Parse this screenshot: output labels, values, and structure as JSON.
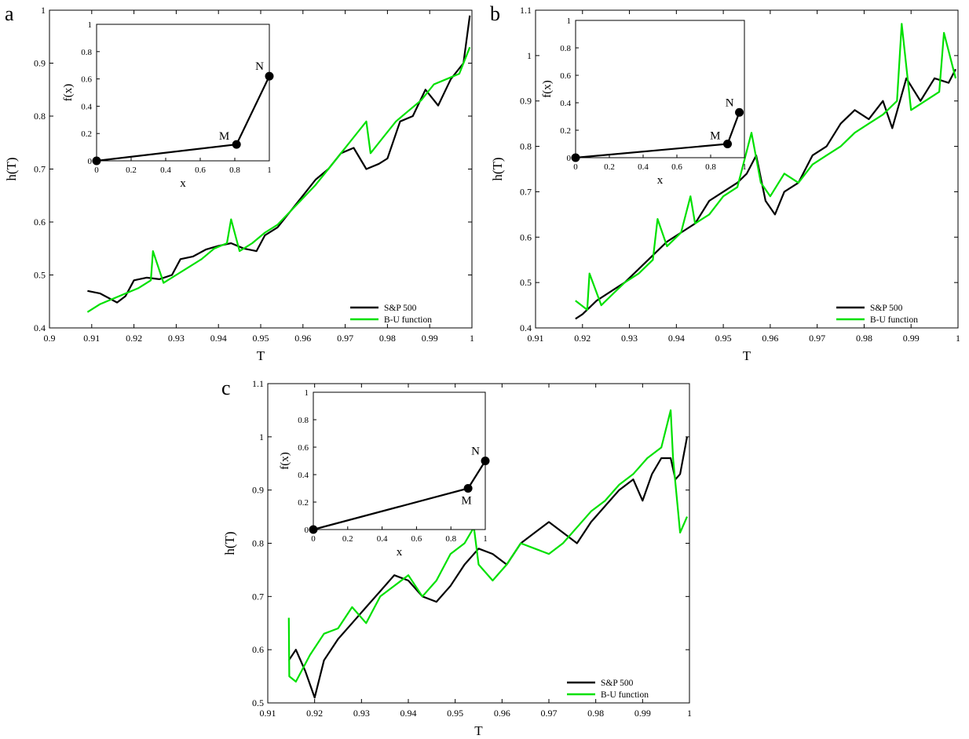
{
  "colors": {
    "sp500": "#000000",
    "bu": "#00e000",
    "axis": "#000000",
    "background": "#ffffff"
  },
  "chart_data": [
    {
      "panel": "a",
      "type": "line",
      "xlabel": "T",
      "ylabel": "h(T)",
      "xlim": [
        0.9,
        1.0
      ],
      "ylim": [
        0.4,
        1.0
      ],
      "xticks": [
        "0.9",
        "0.91",
        "0.92",
        "0.93",
        "0.94",
        "0.95",
        "0.96",
        "0.97",
        "0.98",
        "0.99",
        "1"
      ],
      "yticks": [
        "0.4",
        "0.5",
        "0.6",
        "0.7",
        "0.8",
        "0.9",
        "1"
      ],
      "legend": {
        "position": "bottom-right"
      },
      "series": [
        {
          "name": "S&P 500",
          "color": "#000000",
          "x": [
            0.909,
            0.912,
            0.916,
            0.918,
            0.92,
            0.923,
            0.926,
            0.929,
            0.931,
            0.934,
            0.937,
            0.94,
            0.943,
            0.946,
            0.949,
            0.951,
            0.954,
            0.957,
            0.96,
            0.963,
            0.966,
            0.969,
            0.972,
            0.975,
            0.978,
            0.98,
            0.983,
            0.986,
            0.989,
            0.992,
            0.995,
            0.998,
            0.9995
          ],
          "y": [
            0.47,
            0.465,
            0.448,
            0.46,
            0.49,
            0.495,
            0.492,
            0.5,
            0.53,
            0.535,
            0.548,
            0.555,
            0.56,
            0.55,
            0.545,
            0.575,
            0.59,
            0.62,
            0.65,
            0.68,
            0.7,
            0.73,
            0.74,
            0.7,
            0.71,
            0.72,
            0.79,
            0.8,
            0.85,
            0.82,
            0.87,
            0.9,
            0.99
          ]
        },
        {
          "name": "B-U function",
          "color": "#00e000",
          "x": [
            0.909,
            0.912,
            0.915,
            0.918,
            0.921,
            0.924,
            0.9245,
            0.927,
            0.93,
            0.933,
            0.936,
            0.939,
            0.942,
            0.943,
            0.945,
            0.948,
            0.951,
            0.954,
            0.957,
            0.96,
            0.963,
            0.966,
            0.969,
            0.972,
            0.975,
            0.976,
            0.979,
            0.982,
            0.985,
            0.988,
            0.991,
            0.994,
            0.997,
            0.9995
          ],
          "y": [
            0.43,
            0.445,
            0.455,
            0.465,
            0.475,
            0.49,
            0.545,
            0.485,
            0.5,
            0.515,
            0.53,
            0.55,
            0.56,
            0.605,
            0.545,
            0.56,
            0.58,
            0.595,
            0.62,
            0.645,
            0.67,
            0.7,
            0.73,
            0.76,
            0.79,
            0.73,
            0.76,
            0.79,
            0.81,
            0.83,
            0.86,
            0.87,
            0.88,
            0.93
          ]
        }
      ],
      "inset": {
        "xlabel": "x",
        "ylabel": "f(x)",
        "xlim": [
          0,
          1
        ],
        "ylim": [
          0,
          1
        ],
        "xticks": [
          "0",
          "0.2",
          "0.4",
          "0.6",
          "0.8",
          "1"
        ],
        "yticks": [
          "0",
          "0.2",
          "0.4",
          "0.6",
          "0.8",
          "1"
        ],
        "points": [
          {
            "label": "",
            "x": 0,
            "y": 0
          },
          {
            "label": "M",
            "x": 0.81,
            "y": 0.12
          },
          {
            "label": "N",
            "x": 1.0,
            "y": 0.62
          }
        ]
      }
    },
    {
      "panel": "b",
      "type": "line",
      "xlabel": "T",
      "ylabel": "h(T)",
      "xlim": [
        0.91,
        1.0
      ],
      "ylim": [
        0.4,
        1.1
      ],
      "xticks": [
        "0.91",
        "0.92",
        "0.93",
        "0.94",
        "0.95",
        "0.96",
        "0.97",
        "0.98",
        "0.99",
        "1"
      ],
      "yticks": [
        "0.4",
        "0.5",
        "0.6",
        "0.7",
        "0.8",
        "0.9",
        "1",
        "1.1"
      ],
      "legend": {
        "position": "bottom-right"
      },
      "series": [
        {
          "name": "S&P 500",
          "color": "#000000",
          "x": [
            0.9185,
            0.92,
            0.923,
            0.926,
            0.929,
            0.932,
            0.935,
            0.938,
            0.941,
            0.944,
            0.947,
            0.95,
            0.953,
            0.955,
            0.957,
            0.959,
            0.961,
            0.963,
            0.966,
            0.969,
            0.972,
            0.975,
            0.978,
            0.981,
            0.984,
            0.986,
            0.989,
            0.992,
            0.995,
            0.998,
            0.9995
          ],
          "y": [
            0.42,
            0.43,
            0.46,
            0.48,
            0.5,
            0.53,
            0.56,
            0.59,
            0.61,
            0.63,
            0.68,
            0.7,
            0.72,
            0.74,
            0.78,
            0.68,
            0.65,
            0.7,
            0.72,
            0.78,
            0.8,
            0.85,
            0.88,
            0.86,
            0.9,
            0.84,
            0.95,
            0.9,
            0.95,
            0.94,
            0.97
          ]
        },
        {
          "name": "B-U function",
          "color": "#00e000",
          "x": [
            0.9185,
            0.921,
            0.9215,
            0.924,
            0.926,
            0.929,
            0.932,
            0.935,
            0.936,
            0.938,
            0.941,
            0.943,
            0.944,
            0.947,
            0.95,
            0.953,
            0.956,
            0.958,
            0.96,
            0.963,
            0.966,
            0.969,
            0.972,
            0.975,
            0.978,
            0.981,
            0.984,
            0.987,
            0.988,
            0.99,
            0.993,
            0.996,
            0.997,
            0.9995
          ],
          "y": [
            0.46,
            0.44,
            0.52,
            0.45,
            0.47,
            0.5,
            0.52,
            0.55,
            0.64,
            0.58,
            0.61,
            0.69,
            0.63,
            0.65,
            0.69,
            0.71,
            0.83,
            0.72,
            0.69,
            0.74,
            0.72,
            0.76,
            0.78,
            0.8,
            0.83,
            0.85,
            0.87,
            0.9,
            1.07,
            0.88,
            0.9,
            0.92,
            1.05,
            0.95
          ]
        }
      ],
      "inset": {
        "xlabel": "x",
        "ylabel": "f(x)",
        "xlim": [
          0,
          1
        ],
        "ylim": [
          0,
          1
        ],
        "xticks": [
          "0",
          "0.2",
          "0.4",
          "0.6",
          "0.8",
          "1"
        ],
        "yticks": [
          "0",
          "0.2",
          "0.4",
          "0.6",
          "0.8",
          "1"
        ],
        "points": [
          {
            "label": "",
            "x": 0,
            "y": 0
          },
          {
            "label": "M",
            "x": 0.9,
            "y": 0.1
          },
          {
            "label": "N",
            "x": 0.97,
            "y": 0.33
          }
        ]
      }
    },
    {
      "panel": "c",
      "type": "line",
      "xlabel": "T",
      "ylabel": "h(T)",
      "xlim": [
        0.91,
        1.0
      ],
      "ylim": [
        0.5,
        1.1
      ],
      "xticks": [
        "0.91",
        "0.92",
        "0.93",
        "0.94",
        "0.95",
        "0.96",
        "0.97",
        "0.98",
        "0.99",
        "1"
      ],
      "yticks": [
        "0.5",
        "0.6",
        "0.7",
        "0.8",
        "0.9",
        "1",
        "1.1"
      ],
      "legend": {
        "position": "bottom-right"
      },
      "series": [
        {
          "name": "S&P 500",
          "color": "#000000",
          "x": [
            0.9145,
            0.916,
            0.918,
            0.92,
            0.922,
            0.925,
            0.928,
            0.931,
            0.934,
            0.937,
            0.94,
            0.943,
            0.946,
            0.949,
            0.952,
            0.955,
            0.958,
            0.961,
            0.964,
            0.967,
            0.97,
            0.973,
            0.976,
            0.979,
            0.982,
            0.985,
            0.988,
            0.99,
            0.992,
            0.994,
            0.996,
            0.997,
            0.998,
            0.9995
          ],
          "y": [
            0.58,
            0.6,
            0.56,
            0.51,
            0.58,
            0.62,
            0.65,
            0.68,
            0.71,
            0.74,
            0.73,
            0.7,
            0.69,
            0.72,
            0.76,
            0.79,
            0.78,
            0.76,
            0.8,
            0.82,
            0.84,
            0.82,
            0.8,
            0.84,
            0.87,
            0.9,
            0.92,
            0.88,
            0.93,
            0.96,
            0.96,
            0.92,
            0.93,
            1.0
          ]
        },
        {
          "name": "B-U function",
          "color": "#00e000",
          "x": [
            0.9145,
            0.9146,
            0.916,
            0.919,
            0.922,
            0.925,
            0.928,
            0.931,
            0.934,
            0.937,
            0.94,
            0.943,
            0.946,
            0.949,
            0.952,
            0.954,
            0.955,
            0.958,
            0.961,
            0.964,
            0.967,
            0.97,
            0.973,
            0.976,
            0.979,
            0.982,
            0.985,
            0.988,
            0.991,
            0.994,
            0.996,
            0.9965,
            0.998,
            0.9985,
            0.9995
          ],
          "y": [
            0.66,
            0.55,
            0.54,
            0.59,
            0.63,
            0.64,
            0.68,
            0.65,
            0.7,
            0.72,
            0.74,
            0.7,
            0.73,
            0.78,
            0.8,
            0.83,
            0.76,
            0.73,
            0.76,
            0.8,
            0.79,
            0.78,
            0.8,
            0.83,
            0.86,
            0.88,
            0.91,
            0.93,
            0.96,
            0.98,
            1.05,
            0.96,
            0.82,
            0.83,
            0.85
          ]
        }
      ],
      "inset": {
        "xlabel": "x",
        "ylabel": "f(x)",
        "xlim": [
          0,
          1
        ],
        "ylim": [
          0,
          1
        ],
        "xticks": [
          "0",
          "0.2",
          "0.4",
          "0.6",
          "0.8",
          "1"
        ],
        "yticks": [
          "0",
          "0.2",
          "0.4",
          "0.6",
          "0.8",
          "1"
        ],
        "points": [
          {
            "label": "",
            "x": 0,
            "y": 0
          },
          {
            "label": "M",
            "x": 0.9,
            "y": 0.3
          },
          {
            "label": "N",
            "x": 1.0,
            "y": 0.5
          }
        ]
      }
    }
  ]
}
